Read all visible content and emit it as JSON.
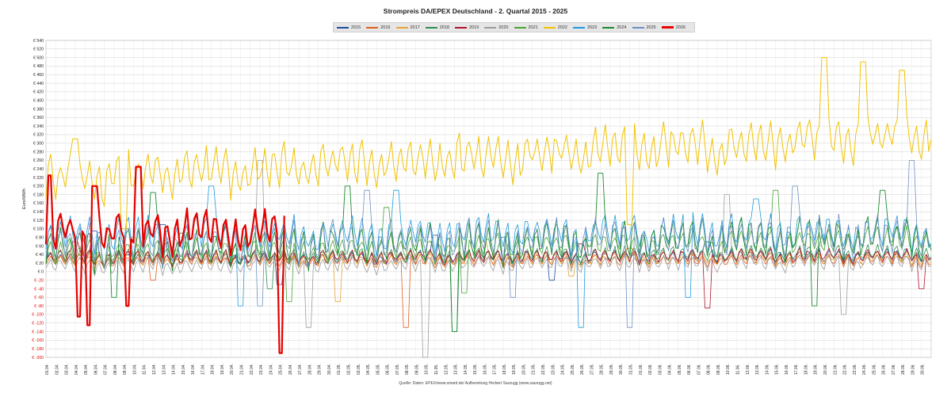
{
  "chart_data": {
    "type": "line",
    "title": "Strompreis DA/EPEX Deutschland - 2. Quartal 2015 - 2025",
    "ylabel": "Euro/MWh",
    "xlabel": "",
    "ylim": [
      -200,
      540
    ],
    "y_tick_step": 20,
    "y_tick_prefix": "€ ",
    "negative_tick_color": "#e00000",
    "grid": true,
    "legend_position": "top-center",
    "x_ticks": [
      "01.04.",
      "02.04.",
      "03.04.",
      "04.04.",
      "05.04.",
      "06.04.",
      "07.04.",
      "08.04.",
      "09.04.",
      "10.04.",
      "11.04.",
      "12.04.",
      "13.04.",
      "14.04.",
      "15.04.",
      "16.04.",
      "17.04.",
      "18.04.",
      "19.04.",
      "20.04.",
      "21.04.",
      "22.04.",
      "23.04.",
      "24.04.",
      "25.04.",
      "26.04.",
      "27.04.",
      "28.04.",
      "29.04.",
      "30.04.",
      "01.05.",
      "02.05.",
      "03.05.",
      "04.05.",
      "05.05.",
      "06.05.",
      "07.05.",
      "08.05.",
      "09.05.",
      "10.05.",
      "11.05.",
      "12.05.",
      "13.05.",
      "14.05.",
      "15.05.",
      "16.05.",
      "17.05.",
      "18.05.",
      "19.05.",
      "20.05.",
      "21.05.",
      "22.05.",
      "23.05.",
      "24.05.",
      "25.05.",
      "26.05.",
      "27.05.",
      "28.05.",
      "29.05.",
      "30.05.",
      "31.05.",
      "01.06.",
      "02.06.",
      "03.06.",
      "04.06.",
      "05.06.",
      "06.06.",
      "07.06.",
      "08.06.",
      "09.06.",
      "10.06.",
      "11.06.",
      "12.06.",
      "13.06.",
      "14.06.",
      "15.06.",
      "16.06.",
      "17.06.",
      "18.06.",
      "19.06.",
      "20.06.",
      "21.06.",
      "22.06.",
      "23.06.",
      "24.06.",
      "25.06.",
      "26.06.",
      "27.06.",
      "28.06.",
      "29.06.",
      "30.06."
    ],
    "series": [
      {
        "name": "2015",
        "color": "#1f4e9c",
        "width": 0.8,
        "days": 91,
        "base": [
          30,
          40
        ],
        "swing": 12,
        "spikes": [
          [
            5,
            95
          ],
          [
            12,
            110
          ],
          [
            40,
            85
          ],
          [
            68,
            70
          ]
        ],
        "dips": [
          [
            24,
            -30
          ],
          [
            52,
            -20
          ]
        ]
      },
      {
        "name": "2016",
        "color": "#e06020",
        "width": 0.8,
        "days": 91,
        "base": [
          25,
          30
        ],
        "swing": 10,
        "spikes": [
          [
            20,
            60
          ],
          [
            60,
            55
          ]
        ],
        "dips": [
          [
            37,
            -130
          ],
          [
            11,
            -20
          ]
        ]
      },
      {
        "name": "2017",
        "color": "#e8a23a",
        "width": 0.8,
        "days": 91,
        "base": [
          30,
          35
        ],
        "swing": 12,
        "spikes": [
          [
            9,
            80
          ],
          [
            45,
            70
          ]
        ],
        "dips": [
          [
            30,
            -70
          ],
          [
            54,
            -10
          ]
        ]
      },
      {
        "name": "2018",
        "color": "#2f8f4e",
        "width": 0.8,
        "days": 91,
        "base": [
          35,
          45
        ],
        "swing": 14,
        "spikes": [
          [
            14,
            90
          ],
          [
            47,
            80
          ],
          [
            80,
            85
          ]
        ],
        "dips": [
          [
            42,
            -140
          ],
          [
            23,
            -40
          ]
        ]
      },
      {
        "name": "2019",
        "color": "#b0122b",
        "width": 0.8,
        "days": 91,
        "base": [
          35,
          40
        ],
        "swing": 12,
        "spikes": [
          [
            3,
            70
          ],
          [
            55,
            65
          ]
        ],
        "dips": [
          [
            68,
            -85
          ],
          [
            90,
            -40
          ]
        ]
      },
      {
        "name": "2020",
        "color": "#9c9c9c",
        "width": 0.8,
        "days": 91,
        "base": [
          15,
          25
        ],
        "swing": 14,
        "spikes": [
          [
            22,
            260
          ],
          [
            70,
            180
          ]
        ],
        "dips": [
          [
            39,
            -200
          ],
          [
            82,
            -100
          ],
          [
            27,
            -130
          ]
        ]
      },
      {
        "name": "2021",
        "color": "#4aa33a",
        "width": 0.8,
        "days": 91,
        "base": [
          45,
          80
        ],
        "swing": 22,
        "spikes": [
          [
            35,
            150
          ],
          [
            75,
            190
          ]
        ],
        "dips": [
          [
            25,
            -70
          ],
          [
            43,
            -50
          ]
        ]
      },
      {
        "name": "2022",
        "color": "#f2c200",
        "width": 1.0,
        "days": 91,
        "base": [
          220,
          330
        ],
        "swing": 40,
        "spikes": [
          [
            3,
            310
          ],
          [
            80,
            500
          ],
          [
            84,
            490
          ],
          [
            88,
            470
          ]
        ],
        "dips": [
          [
            8,
            100
          ],
          [
            60,
            110
          ]
        ]
      },
      {
        "name": "2023",
        "color": "#1f9adf",
        "width": 0.8,
        "days": 91,
        "base": [
          90,
          100
        ],
        "swing": 30,
        "spikes": [
          [
            17,
            200
          ],
          [
            36,
            190
          ],
          [
            73,
            170
          ]
        ],
        "dips": [
          [
            20,
            -80
          ],
          [
            55,
            -130
          ],
          [
            66,
            -60
          ]
        ]
      },
      {
        "name": "2024",
        "color": "#1a8a2e",
        "width": 0.9,
        "days": 91,
        "base": [
          60,
          90
        ],
        "swing": 35,
        "spikes": [
          [
            11,
            185
          ],
          [
            31,
            200
          ],
          [
            57,
            230
          ],
          [
            86,
            190
          ]
        ],
        "dips": [
          [
            7,
            -60
          ],
          [
            42,
            -140
          ],
          [
            79,
            -80
          ]
        ]
      },
      {
        "name": "2025",
        "color": "#6d8fc4",
        "width": 0.8,
        "days": 91,
        "base": [
          70,
          90
        ],
        "swing": 35,
        "spikes": [
          [
            33,
            190
          ],
          [
            77,
            200
          ],
          [
            89,
            260
          ]
        ],
        "dips": [
          [
            22,
            -80
          ],
          [
            48,
            -60
          ],
          [
            60,
            -130
          ]
        ]
      },
      {
        "name": "2026",
        "color": "#e60000",
        "width": 2.2,
        "days": 24.5,
        "base": [
          100,
          110
        ],
        "swing": 35,
        "spikes": [
          [
            0.3,
            225
          ],
          [
            9.5,
            245
          ],
          [
            5,
            200
          ]
        ],
        "dips": [
          [
            3.4,
            -105
          ],
          [
            4.4,
            -125
          ],
          [
            8.3,
            -80
          ],
          [
            24.1,
            -190
          ]
        ]
      }
    ]
  },
  "source_note": "Quelle: Daten: EPEX/www.smard.de/ Aufbereitung Herbert Saurugg (www.saurugg.net)"
}
